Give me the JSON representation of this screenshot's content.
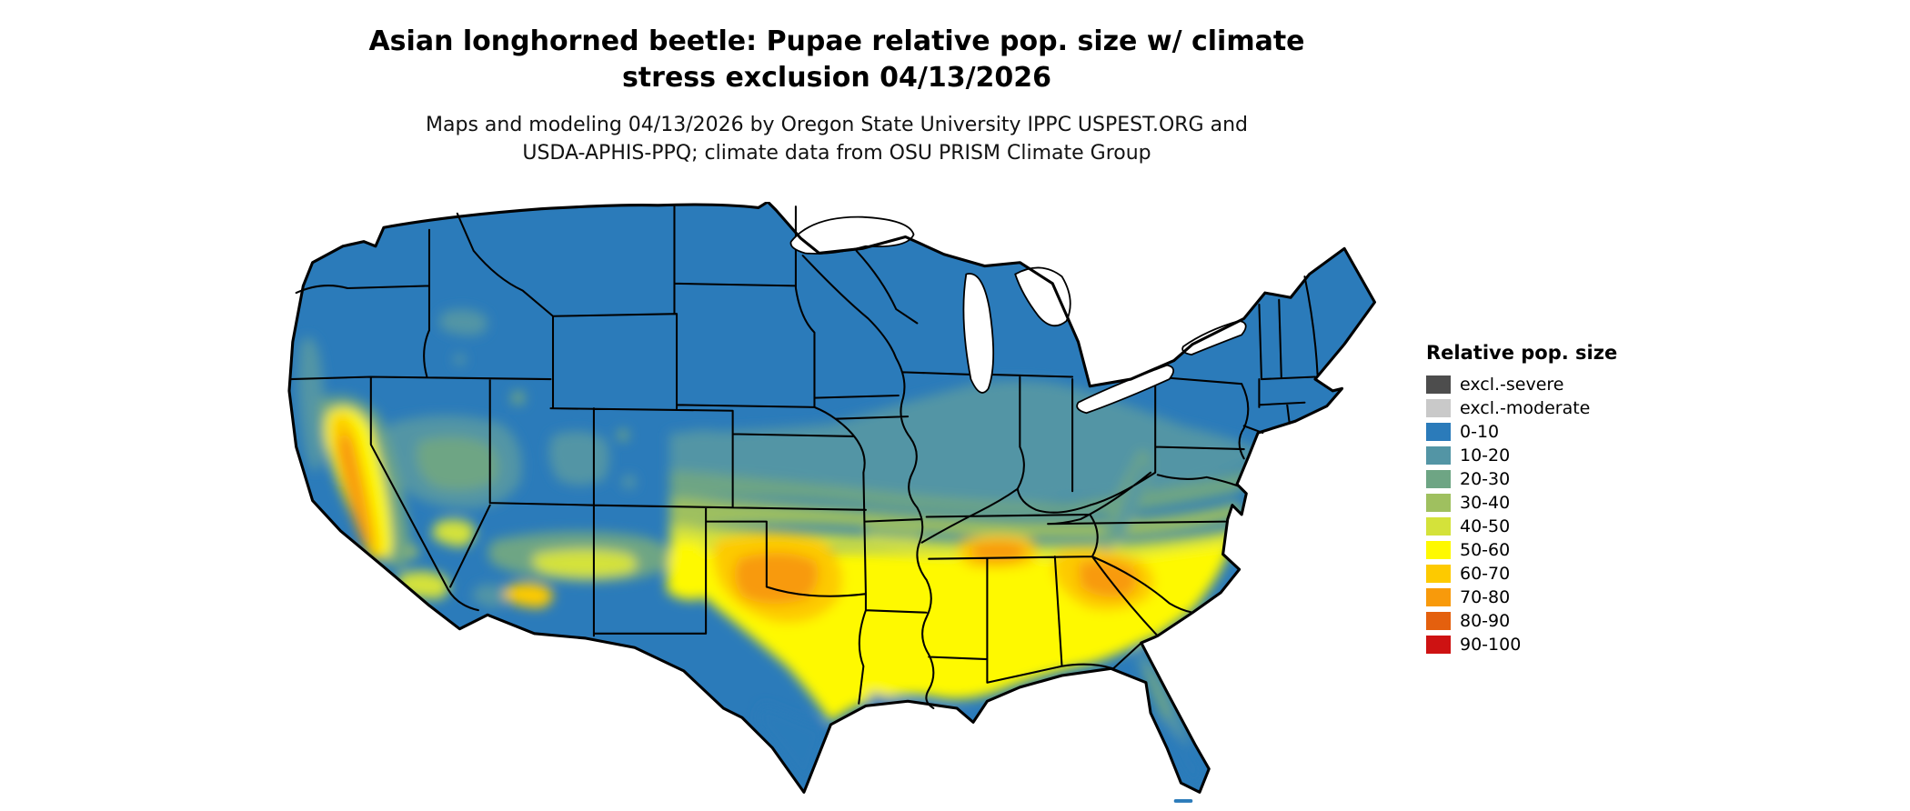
{
  "page": {
    "background": "#ffffff"
  },
  "title": {
    "line1": "Asian longhorned beetle: Pupae relative pop. size w/ climate",
    "line2": "stress exclusion 04/13/2026"
  },
  "subtitle": {
    "line1": "Maps and modeling 04/13/2026 by Oregon State University IPPC USPEST.ORG and",
    "line2": "USDA-APHIS-PPQ; climate data from OSU PRISM Climate Group"
  },
  "legend": {
    "title": "Relative pop. size",
    "entries": [
      {
        "label": "excl.-severe",
        "color": "#4d4d4d"
      },
      {
        "label": "excl.-moderate",
        "color": "#c9c9c9"
      },
      {
        "label": "0-10",
        "color": "#2b7bba"
      },
      {
        "label": "10-20",
        "color": "#5395a5"
      },
      {
        "label": "20-30",
        "color": "#6ea584"
      },
      {
        "label": "30-40",
        "color": "#9fc05f"
      },
      {
        "label": "40-50",
        "color": "#d4e23a"
      },
      {
        "label": "50-60",
        "color": "#fef900"
      },
      {
        "label": "60-70",
        "color": "#fdca00"
      },
      {
        "label": "70-80",
        "color": "#f89a0b"
      },
      {
        "label": "80-90",
        "color": "#e4600e"
      },
      {
        "label": "90-100",
        "color": "#ce1212"
      }
    ]
  },
  "map": {
    "region": "Contiguous United States",
    "description": "Raster map of relative population size: blue (0-10) across the northern tier, Rockies and New England; teal-to-green transitional bands through the central plains, Ohio Valley and mid-Atlantic; yellow (50-60) across Texas and the Southeast with orange maxima (60-80) in central Texas/Oklahoma, the Tennessee Valley, the Carolina piedmont and California's Central Valley; blue again along the south Texas coast and southern Florida."
  }
}
